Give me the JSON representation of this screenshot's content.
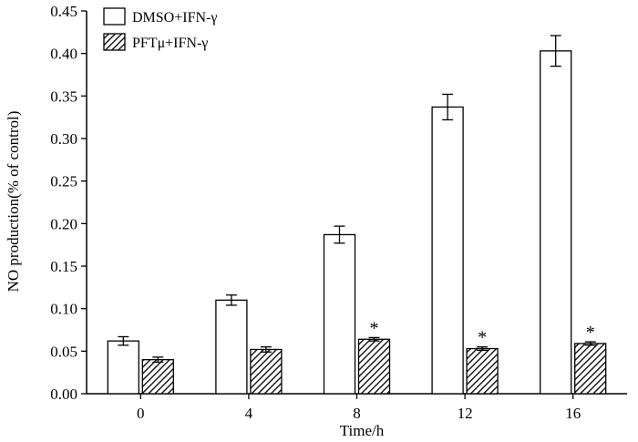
{
  "chart_data": {
    "type": "bar",
    "title": "",
    "xlabel": "Time/h",
    "ylabel": "NO production(% of control)",
    "categories": [
      "0",
      "4",
      "8",
      "12",
      "16"
    ],
    "ylim": [
      0,
      0.45
    ],
    "yticks": [
      0.0,
      0.05,
      0.1,
      0.15,
      0.2,
      0.25,
      0.3,
      0.35,
      0.4,
      0.45
    ],
    "ytick_labels": [
      "0.00",
      "0.05",
      "0.10",
      "0.15",
      "0.20",
      "0.25",
      "0.30",
      "0.35",
      "0.40",
      "0.45"
    ],
    "grid": false,
    "legend_position": "top-left",
    "series": [
      {
        "name": "DMSO+IFN-γ",
        "fill": "white",
        "values": [
          0.062,
          0.11,
          0.187,
          0.337,
          0.403
        ],
        "errors": [
          0.005,
          0.006,
          0.01,
          0.015,
          0.018
        ]
      },
      {
        "name": "PFTμ+IFN-γ",
        "fill": "hatch",
        "values": [
          0.04,
          0.052,
          0.064,
          0.053,
          0.059
        ],
        "errors": [
          0.003,
          0.003,
          0.002,
          0.002,
          0.002
        ]
      }
    ],
    "annotations": [
      {
        "category": "8",
        "series": 1,
        "text": "*"
      },
      {
        "category": "12",
        "series": 1,
        "text": "*"
      },
      {
        "category": "16",
        "series": 1,
        "text": "*"
      }
    ],
    "colors": {
      "stroke": "#000000",
      "open_fill": "#ffffff",
      "hatch_line": "#000000"
    }
  }
}
